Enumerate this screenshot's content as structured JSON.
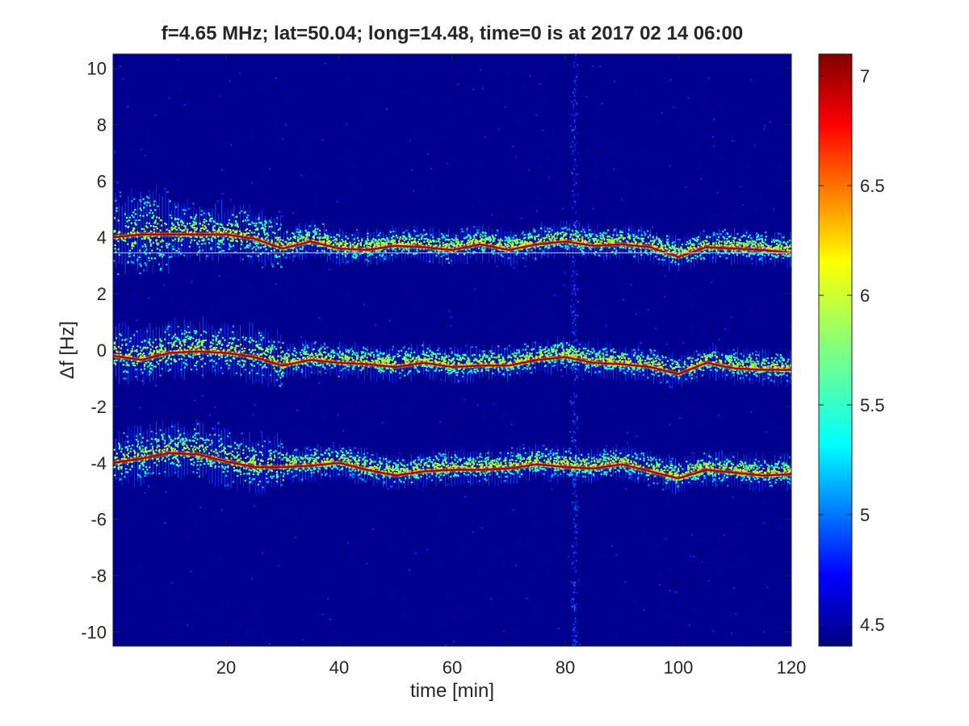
{
  "chart_data": {
    "type": "heatmap",
    "title": "f=4.65 MHz;  lat=50.04; long=14.48, time=0 is at 2017 02 14 06:00",
    "xlabel": "time [min]",
    "ylabel": "Δf [Hz]",
    "xlim": [
      0,
      120
    ],
    "ylim": [
      -10.5,
      10.5
    ],
    "x_ticks": [
      20,
      40,
      60,
      80,
      100,
      120
    ],
    "y_ticks": [
      -10,
      -8,
      -6,
      -4,
      -2,
      0,
      2,
      4,
      6,
      8,
      10
    ],
    "colormap": "jet",
    "colorbar": {
      "range": [
        4.4,
        7.1
      ],
      "ticks": [
        4.5,
        5,
        5.5,
        6,
        6.5,
        7
      ]
    },
    "grid": false,
    "background_color": "#00008f",
    "vertical_noise_band_x": 81.5,
    "series": [
      {
        "x": [
          0,
          5,
          10,
          15,
          20,
          25,
          30,
          35,
          40,
          45,
          50,
          55,
          60,
          65,
          70,
          75,
          80,
          85,
          90,
          95,
          100,
          105,
          110,
          115,
          120
        ],
        "y": [
          4.0,
          4.1,
          4.1,
          4.1,
          4.1,
          3.95,
          3.6,
          3.85,
          3.6,
          3.55,
          3.7,
          3.65,
          3.55,
          3.75,
          3.55,
          3.75,
          3.85,
          3.7,
          3.75,
          3.65,
          3.3,
          3.65,
          3.6,
          3.55,
          3.45
        ]
      },
      {
        "x": [
          0,
          5,
          10,
          15,
          20,
          25,
          30,
          35,
          40,
          45,
          50,
          55,
          60,
          65,
          70,
          75,
          80,
          85,
          90,
          95,
          100,
          105,
          110,
          115,
          120
        ],
        "y": [
          -0.2,
          -0.35,
          -0.1,
          -0.05,
          -0.1,
          -0.25,
          -0.55,
          -0.35,
          -0.45,
          -0.5,
          -0.6,
          -0.45,
          -0.6,
          -0.55,
          -0.55,
          -0.35,
          -0.25,
          -0.45,
          -0.5,
          -0.6,
          -0.85,
          -0.45,
          -0.65,
          -0.7,
          -0.7
        ]
      },
      {
        "x": [
          0,
          5,
          10,
          15,
          20,
          25,
          30,
          35,
          40,
          45,
          50,
          55,
          60,
          65,
          70,
          75,
          80,
          85,
          90,
          95,
          100,
          105,
          110,
          115,
          120
        ],
        "y": [
          -4.0,
          -3.85,
          -3.65,
          -3.7,
          -3.95,
          -4.15,
          -4.15,
          -4.1,
          -4.0,
          -4.25,
          -4.45,
          -4.3,
          -4.25,
          -4.25,
          -4.2,
          -4.05,
          -4.15,
          -4.2,
          -4.05,
          -4.3,
          -4.55,
          -4.25,
          -4.35,
          -4.45,
          -4.4
        ]
      }
    ]
  }
}
